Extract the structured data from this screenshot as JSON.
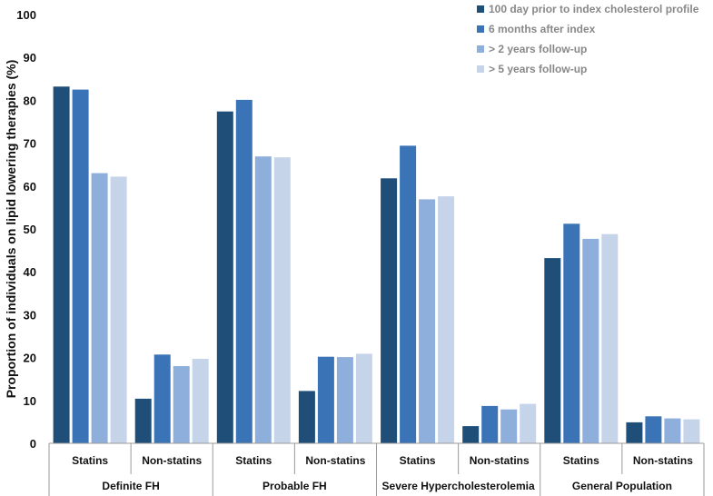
{
  "chart_data": {
    "type": "bar",
    "title": "",
    "ylabel": "Proportion of individuals on lipid lowering therapies (%)",
    "xlabel": "",
    "ylim": [
      0,
      100
    ],
    "yticks": [
      "0",
      "10",
      "20",
      "30",
      "40",
      "50",
      "60",
      "70",
      "80",
      "90",
      "100"
    ],
    "legend_position": "top-right",
    "groups": [
      "Definite FH",
      "Probable FH",
      "Severe Hypercholesterolemia",
      "General Population"
    ],
    "subcategories": [
      "Statins",
      "Non-statins"
    ],
    "series": [
      {
        "name": "100 day prior to index cholesterol profile",
        "color": "#1f4e79",
        "values": [
          83.2,
          10.4,
          77.4,
          12.2,
          61.8,
          4.0,
          43.2,
          4.9
        ]
      },
      {
        "name": "6 months after index",
        "color": "#3a74b7",
        "values": [
          82.5,
          20.7,
          80.1,
          20.2,
          69.4,
          8.7,
          51.2,
          6.3
        ]
      },
      {
        "name": "> 2 years follow-up",
        "color": "#8eaedb",
        "values": [
          63.0,
          18.0,
          66.9,
          20.1,
          56.9,
          7.9,
          47.7,
          5.8
        ]
      },
      {
        "name": "> 5 years follow-up",
        "color": "#c6d4ea",
        "values": [
          62.2,
          19.7,
          66.7,
          20.9,
          57.6,
          9.2,
          48.8,
          5.6
        ]
      }
    ]
  }
}
